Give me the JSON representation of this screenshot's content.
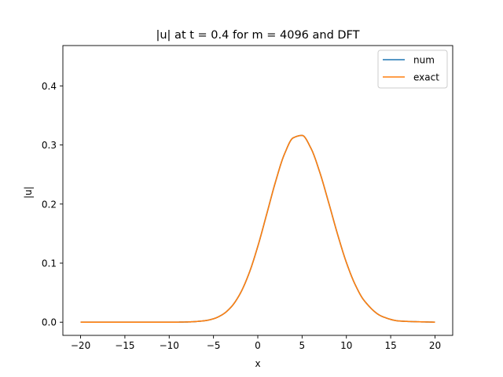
{
  "chart_data": {
    "type": "line",
    "title": "|u| at t = 0.4 for m = 4096 and DFT",
    "xlabel": "x",
    "ylabel": "|u|",
    "xlim": [
      -22,
      22
    ],
    "ylim": [
      -0.0223,
      0.4683
    ],
    "xticks": [
      -20,
      -15,
      -10,
      -5,
      0,
      5,
      10,
      15,
      20
    ],
    "xtick_labels": [
      "−20",
      "−15",
      "−10",
      "−5",
      "0",
      "5",
      "10",
      "15",
      "20"
    ],
    "yticks": [
      0.0,
      0.1,
      0.2,
      0.3,
      0.4
    ],
    "ytick_labels": [
      "0.0",
      "0.1",
      "0.2",
      "0.3",
      "0.4"
    ],
    "grid": false,
    "legend": "top-right",
    "x": [
      -20,
      -10,
      -8,
      -6,
      -5,
      -4,
      -3,
      -2,
      -1,
      0,
      1,
      2,
      3,
      4,
      5,
      6,
      7,
      8,
      9,
      10,
      11,
      12,
      14,
      16,
      20
    ],
    "series": [
      {
        "name": "num",
        "color": "#1f77b4",
        "values": [
          0.0,
          0.0,
          0.0004,
          0.0025,
          0.0058,
          0.0128,
          0.0258,
          0.0481,
          0.0822,
          0.1283,
          0.1826,
          0.2376,
          0.2842,
          0.3121,
          0.3162,
          0.2944,
          0.2536,
          0.2024,
          0.1491,
          0.1011,
          0.0634,
          0.0368,
          0.01,
          0.002,
          0.0
        ]
      },
      {
        "name": "exact",
        "color": "#ff7f0e",
        "values": [
          0.0,
          0.0,
          0.0004,
          0.0025,
          0.0058,
          0.0128,
          0.0258,
          0.0481,
          0.0822,
          0.1283,
          0.1826,
          0.2376,
          0.2842,
          0.3121,
          0.3162,
          0.2944,
          0.2536,
          0.2024,
          0.1491,
          0.1011,
          0.0634,
          0.0368,
          0.01,
          0.002,
          0.0
        ]
      }
    ]
  }
}
